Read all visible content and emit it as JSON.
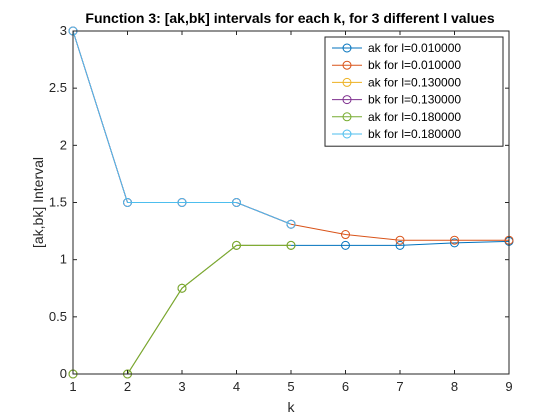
{
  "chart_data": {
    "type": "line",
    "title": "Function 3: [ak,bk] intervals for each k, for 3 different l values",
    "xlabel": "k",
    "ylabel": "[ak,bk] Interval",
    "xlim": [
      1,
      9
    ],
    "ylim": [
      0,
      3
    ],
    "xticks": [
      1,
      2,
      3,
      4,
      5,
      6,
      7,
      8,
      9
    ],
    "yticks": [
      0,
      0.5,
      1,
      1.5,
      2,
      2.5,
      3
    ],
    "xtick_labels": [
      "1",
      "2",
      "3",
      "4",
      "5",
      "6",
      "7",
      "8",
      "9"
    ],
    "ytick_labels": [
      "0",
      "0.5",
      "1",
      "1.5",
      "2",
      "2.5",
      "3"
    ],
    "grid": false,
    "legend_position": "top-right",
    "marker": "circle",
    "series": [
      {
        "name": "ak for l=0.010000",
        "color": "#0072BD",
        "x": [
          1,
          2,
          3,
          4,
          5,
          6,
          7,
          8,
          9
        ],
        "values": [
          0,
          0,
          0.75,
          1.125,
          1.125,
          1.125,
          1.125,
          1.147,
          1.16
        ]
      },
      {
        "name": "bk for l=0.010000",
        "color": "#D95319",
        "x": [
          1,
          2,
          3,
          4,
          5,
          6,
          7,
          8,
          9
        ],
        "values": [
          3,
          1.5,
          1.5,
          1.5,
          1.31,
          1.22,
          1.17,
          1.17,
          1.17
        ]
      },
      {
        "name": "ak for l=0.130000",
        "color": "#EDB120",
        "x": [
          1,
          2,
          3,
          4,
          5
        ],
        "values": [
          0,
          0,
          0.75,
          1.125,
          1.125
        ]
      },
      {
        "name": "bk for l=0.130000",
        "color": "#7E2F8E",
        "x": [
          1,
          2,
          3,
          4,
          5
        ],
        "values": [
          3,
          1.5,
          1.5,
          1.5,
          1.31
        ]
      },
      {
        "name": "ak for l=0.180000",
        "color": "#77AC30",
        "x": [
          1,
          2,
          3,
          4,
          5
        ],
        "values": [
          0,
          0,
          0.75,
          1.125,
          1.125
        ]
      },
      {
        "name": "bk for l=0.180000",
        "color": "#4DBEEE",
        "x": [
          1,
          2,
          3,
          4,
          5
        ],
        "values": [
          3,
          1.5,
          1.5,
          1.5,
          1.31
        ]
      }
    ]
  }
}
